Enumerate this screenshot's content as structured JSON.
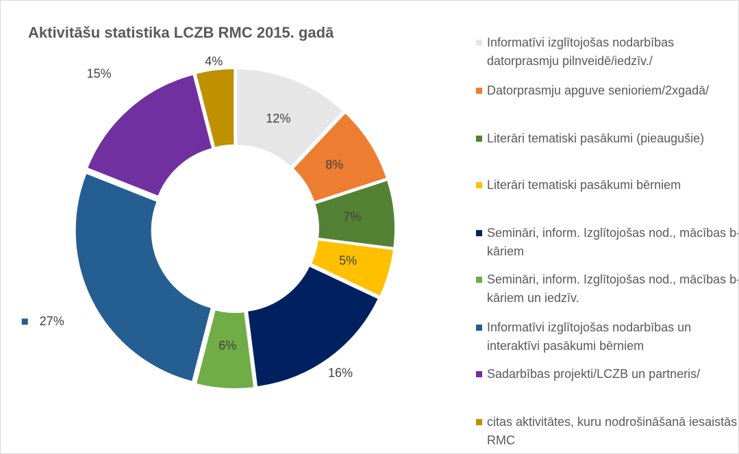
{
  "chart_data": {
    "type": "donut",
    "title": "Aktivitāšu statistika LCZB RMC 2015. gadā",
    "categories": [
      "Informatīvi izglītojošas nodarbības datorprasmju pilnveidē/iedzīv./",
      "Datorprasmju apguve senioriem/2xgadā/",
      "Literāri tematiski pasākumi (pieaugušie)",
      "Literāri tematiski pasākumi bērniem",
      "Semināri, inform. Izglītojošas nod., mācības b-kāriem",
      "Semināri, inform. Izglītojošas nod., mācības b-kāriem un iedzīv.",
      "Informatīvi izglītojošas nodarbības un interaktīvi pasākumi bērniem",
      "Sadarbības projekti/LCZB un partneris/",
      "citas aktivitātes, kuru nodrošināšanā  iesaistās  RMC"
    ],
    "values": [
      12,
      8,
      7,
      5,
      16,
      6,
      27,
      15,
      4
    ],
    "value_labels": [
      "12%",
      "8%",
      "7%",
      "5%",
      "16%",
      "6%",
      "27%",
      "15%",
      "4%"
    ],
    "colors": [
      "#e7e6e6",
      "#ed7d31",
      "#548235",
      "#ffc000",
      "#002060",
      "#70ad47",
      "#255e91",
      "#7030a0",
      "#bf9000"
    ],
    "legend": "right"
  }
}
